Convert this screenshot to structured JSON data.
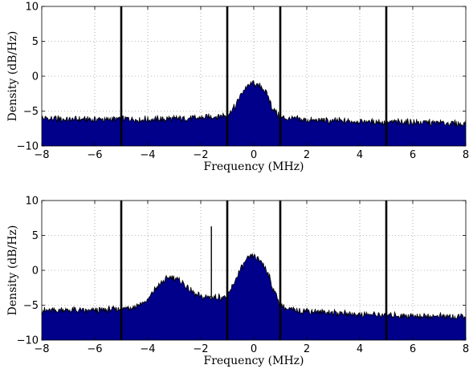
{
  "chart_data": [
    {
      "type": "area",
      "xlabel": "Frequency (MHz)",
      "ylabel": "Density (dB/Hz)",
      "xlim": [
        -8,
        8
      ],
      "ylim": [
        -10,
        10
      ],
      "xticks": [
        -8,
        -6,
        -4,
        -2,
        0,
        2,
        4,
        6,
        8
      ],
      "yticks": [
        -10,
        -5,
        0,
        5,
        10
      ],
      "grid": true,
      "fill_color": "#00008b",
      "vertical_markers": [
        -5,
        -1,
        1,
        5
      ],
      "series": [
        {
          "x": [
            -8,
            -7,
            -6,
            -5,
            -4,
            -3,
            -2,
            -1.5,
            -1,
            -0.7,
            -0.5,
            -0.3,
            -0.1,
            0,
            0.1,
            0.3,
            0.5,
            0.7,
            1,
            2,
            3,
            4,
            5,
            6,
            7,
            8
          ],
          "values": [
            -6.1,
            -6.2,
            -6.2,
            -6.1,
            -6.2,
            -6.1,
            -6.0,
            -5.8,
            -5.6,
            -4.3,
            -2.7,
            -1.7,
            -1.1,
            -1.0,
            -1.2,
            -1.5,
            -2.6,
            -4.5,
            -6.0,
            -6.3,
            -6.4,
            -6.5,
            -6.6,
            -6.6,
            -6.7,
            -6.8
          ]
        }
      ]
    },
    {
      "type": "area",
      "xlabel": "Frequency (MHz)",
      "ylabel": "Density (dB/Hz)",
      "xlim": [
        -8,
        8
      ],
      "ylim": [
        -10,
        10
      ],
      "xticks": [
        -8,
        -6,
        -4,
        -2,
        0,
        2,
        4,
        6,
        8
      ],
      "yticks": [
        -10,
        -5,
        0,
        5,
        10
      ],
      "grid": true,
      "fill_color": "#00008b",
      "vertical_markers": [
        -5,
        -1,
        1,
        5
      ],
      "spikes": [
        {
          "x": -1.6,
          "y": 6.3
        }
      ],
      "series": [
        {
          "x": [
            -8,
            -7,
            -6,
            -5,
            -4.5,
            -4,
            -3.7,
            -3.4,
            -3.1,
            -2.8,
            -2.5,
            -2.2,
            -2,
            -1.5,
            -1,
            -0.7,
            -0.5,
            -0.3,
            -0.1,
            0,
            0.1,
            0.3,
            0.5,
            0.7,
            1,
            1.3,
            2,
            3,
            4,
            5,
            6,
            7,
            8
          ],
          "values": [
            -5.8,
            -5.7,
            -5.8,
            -5.5,
            -5.2,
            -4.3,
            -2.6,
            -1.5,
            -0.9,
            -1.5,
            -2.5,
            -3.4,
            -3.8,
            -3.9,
            -3.8,
            -1.5,
            0.2,
            1.3,
            1.9,
            2.1,
            1.7,
            1.2,
            0.0,
            -2.3,
            -4.9,
            -5.6,
            -5.8,
            -6.1,
            -6.3,
            -6.4,
            -6.5,
            -6.6,
            -6.7
          ]
        }
      ]
    }
  ]
}
